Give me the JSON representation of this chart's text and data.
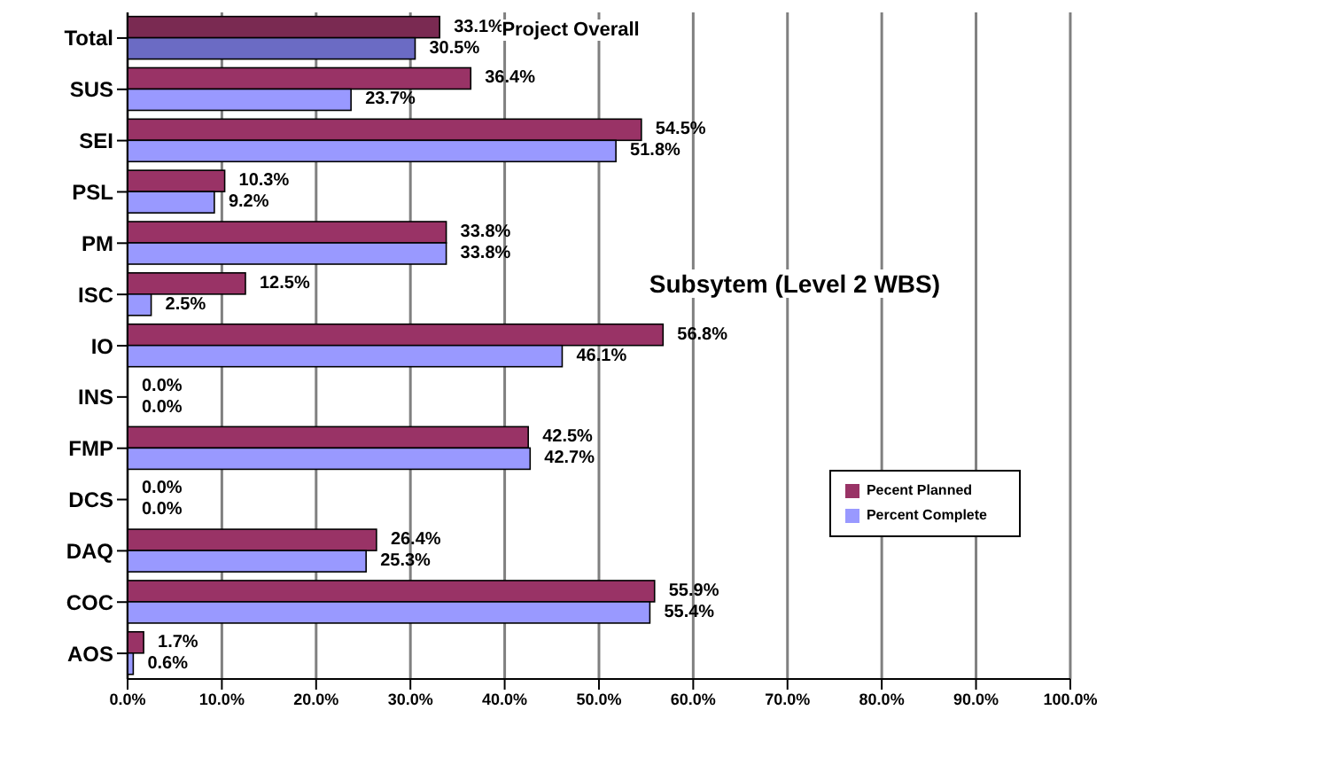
{
  "chart_data": {
    "type": "bar",
    "orientation": "horizontal",
    "categories": [
      "Total",
      "SUS",
      "SEI",
      "PSL",
      "PM",
      "ISC",
      "IO",
      "INS",
      "FMP",
      "DCS",
      "DAQ",
      "COC",
      "AOS"
    ],
    "series": [
      {
        "name": "Pecent Planned",
        "color": "#993366",
        "colors": [
          "#7a2a52",
          "#993366",
          "#993366",
          "#993366",
          "#993366",
          "#993366",
          "#993366",
          "#993366",
          "#993366",
          "#993366",
          "#993366",
          "#993366",
          "#993366"
        ],
        "values": [
          33.1,
          36.4,
          54.5,
          10.3,
          33.8,
          12.5,
          56.8,
          0,
          42.5,
          0,
          26.4,
          55.9,
          1.7
        ],
        "value_labels": [
          "33.1%",
          "36.4%",
          "54.5%",
          "10.3%",
          "33.8%",
          "12.5%",
          "56.8%",
          "0.0%",
          "42.5%",
          "0.0%",
          "26.4%",
          "55.9%",
          "1.7%"
        ]
      },
      {
        "name": "Percent Complete",
        "color": "#9999ff",
        "colors": [
          "#6b6bc4",
          "#9999ff",
          "#9999ff",
          "#9999ff",
          "#9999ff",
          "#9999ff",
          "#9999ff",
          "#9999ff",
          "#9999ff",
          "#9999ff",
          "#9999ff",
          "#9999ff",
          "#9999ff"
        ],
        "values": [
          30.5,
          23.7,
          51.8,
          9.2,
          33.8,
          2.5,
          46.1,
          0,
          42.7,
          0,
          25.3,
          55.4,
          0.6
        ],
        "value_labels": [
          "30.5%",
          "23.7%",
          "51.8%",
          "9.2%",
          "33.8%",
          "2.5%",
          "46.1%",
          "0.0%",
          "42.7%",
          "0.0%",
          "25.3%",
          "55.4%",
          "0.6%"
        ]
      }
    ],
    "xlim": [
      0,
      100
    ],
    "xticks": [
      {
        "value": 0,
        "label": "0.0%"
      },
      {
        "value": 10,
        "label": "10.0%"
      },
      {
        "value": 20,
        "label": "20.0%"
      },
      {
        "value": 30,
        "label": "30.0%"
      },
      {
        "value": 40,
        "label": "40.0%"
      },
      {
        "value": 50,
        "label": "50.0%"
      },
      {
        "value": 60,
        "label": "60.0%"
      },
      {
        "value": 70,
        "label": "70.0%"
      },
      {
        "value": 80,
        "label": "80.0%"
      },
      {
        "value": 90,
        "label": "90.0%"
      },
      {
        "value": 100,
        "label": "100.0%"
      }
    ],
    "grid": "x",
    "legend": "right",
    "annotations": [
      "Project Overall",
      "Subsytem (Level 2 WBS)"
    ]
  }
}
